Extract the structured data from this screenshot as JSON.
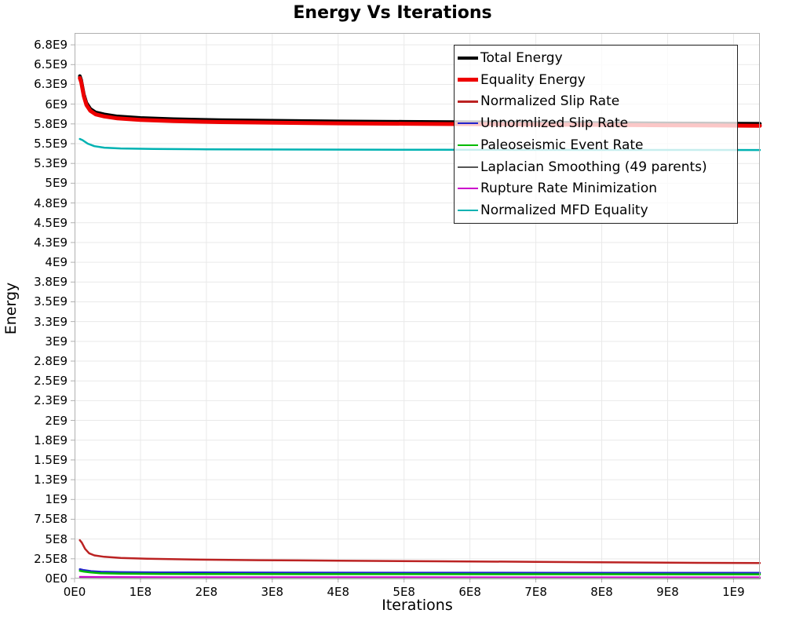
{
  "chart_data": {
    "type": "line",
    "title": "Energy Vs Iterations",
    "xlabel": "Iterations",
    "ylabel": "Energy",
    "xlim": [
      0,
      1040000000.0
    ],
    "ylim": [
      0,
      6900000000.0
    ],
    "grid": true,
    "legend_position": "upper-right-inside",
    "legend_border_color": "#222222",
    "legend_background": "rgba(255,255,255,0.78)",
    "x_ticks": [
      {
        "value": 0,
        "label": "0E0"
      },
      {
        "value": 100000000.0,
        "label": "1E8"
      },
      {
        "value": 200000000.0,
        "label": "2E8"
      },
      {
        "value": 300000000.0,
        "label": "3E8"
      },
      {
        "value": 400000000.0,
        "label": "4E8"
      },
      {
        "value": 500000000.0,
        "label": "5E8"
      },
      {
        "value": 600000000.0,
        "label": "6E8"
      },
      {
        "value": 700000000.0,
        "label": "7E8"
      },
      {
        "value": 800000000.0,
        "label": "8E8"
      },
      {
        "value": 900000000.0,
        "label": "9E8"
      },
      {
        "value": 1000000000.0,
        "label": "1E9"
      }
    ],
    "y_ticks": [
      {
        "value": 6750000000.0,
        "label": "6.8E9"
      },
      {
        "value": 6500000000.0,
        "label": "6.5E9"
      },
      {
        "value": 6250000000.0,
        "label": "6.3E9"
      },
      {
        "value": 6000000000.0,
        "label": "6E9"
      },
      {
        "value": 5750000000.0,
        "label": "5.8E9"
      },
      {
        "value": 5500000000.0,
        "label": "5.5E9"
      },
      {
        "value": 5250000000.0,
        "label": "5.3E9"
      },
      {
        "value": 5000000000.0,
        "label": "5E9"
      },
      {
        "value": 4750000000.0,
        "label": "4.8E9"
      },
      {
        "value": 4500000000.0,
        "label": "4.5E9"
      },
      {
        "value": 4250000000.0,
        "label": "4.3E9"
      },
      {
        "value": 4000000000.0,
        "label": "4E9"
      },
      {
        "value": 3750000000.0,
        "label": "3.8E9"
      },
      {
        "value": 3500000000.0,
        "label": "3.5E9"
      },
      {
        "value": 3250000000.0,
        "label": "3.3E9"
      },
      {
        "value": 3000000000.0,
        "label": "3E9"
      },
      {
        "value": 2750000000.0,
        "label": "2.8E9"
      },
      {
        "value": 2500000000.0,
        "label": "2.5E9"
      },
      {
        "value": 2250000000.0,
        "label": "2.3E9"
      },
      {
        "value": 2000000000.0,
        "label": "2E9"
      },
      {
        "value": 1750000000.0,
        "label": "1.8E9"
      },
      {
        "value": 1500000000.0,
        "label": "1.5E9"
      },
      {
        "value": 1250000000.0,
        "label": "1.3E9"
      },
      {
        "value": 1000000000.0,
        "label": "1E9"
      },
      {
        "value": 750000000.0,
        "label": "7.5E8"
      },
      {
        "value": 500000000.0,
        "label": "5E8"
      },
      {
        "value": 250000000.0,
        "label": "2.5E8"
      },
      {
        "value": 0,
        "label": "0E0"
      }
    ],
    "series": [
      {
        "name": "Total Energy",
        "color": "#000000",
        "width": 4.5,
        "points": [
          [
            8000000.0,
            6355000000.0
          ],
          [
            10000000.0,
            6305000000.0
          ],
          [
            14000000.0,
            6125000000.0
          ],
          [
            18000000.0,
            6015000000.0
          ],
          [
            24000000.0,
            5940000000.0
          ],
          [
            32000000.0,
            5895000000.0
          ],
          [
            45000000.0,
            5870000000.0
          ],
          [
            65000000.0,
            5845000000.0
          ],
          [
            100000000.0,
            5825000000.0
          ],
          [
            150000000.0,
            5810000000.0
          ],
          [
            220000000.0,
            5798000000.0
          ],
          [
            300000000.0,
            5790000000.0
          ],
          [
            400000000.0,
            5782000000.0
          ],
          [
            500000000.0,
            5777000000.0
          ],
          [
            600000000.0,
            5772000000.0
          ],
          [
            700000000.0,
            5767000000.0
          ],
          [
            800000000.0,
            5762000000.0
          ],
          [
            900000000.0,
            5757000000.0
          ],
          [
            1000000000.0,
            5753000000.0
          ],
          [
            1040000000.0,
            5752000000.0
          ]
        ]
      },
      {
        "name": "Equality Energy",
        "color": "#ee0000",
        "width": 5,
        "points": [
          [
            8000000.0,
            6330000000.0
          ],
          [
            10000000.0,
            6280000000.0
          ],
          [
            14000000.0,
            6100000000.0
          ],
          [
            18000000.0,
            5990000000.0
          ],
          [
            24000000.0,
            5915000000.0
          ],
          [
            32000000.0,
            5870000000.0
          ],
          [
            45000000.0,
            5845000000.0
          ],
          [
            65000000.0,
            5820000000.0
          ],
          [
            100000000.0,
            5800000000.0
          ],
          [
            150000000.0,
            5785000000.0
          ],
          [
            220000000.0,
            5773000000.0
          ],
          [
            300000000.0,
            5765000000.0
          ],
          [
            400000000.0,
            5757000000.0
          ],
          [
            500000000.0,
            5752000000.0
          ],
          [
            600000000.0,
            5747000000.0
          ],
          [
            700000000.0,
            5742000000.0
          ],
          [
            800000000.0,
            5737000000.0
          ],
          [
            900000000.0,
            5732000000.0
          ],
          [
            1000000000.0,
            5728000000.0
          ],
          [
            1040000000.0,
            5727000000.0
          ]
        ]
      },
      {
        "name": "Normalized Slip Rate",
        "color": "#bb2222",
        "width": 2.5,
        "points": [
          [
            8000000.0,
            485000000.0
          ],
          [
            11000000.0,
            455000000.0
          ],
          [
            16000000.0,
            375000000.0
          ],
          [
            22000000.0,
            320000000.0
          ],
          [
            30000000.0,
            293000000.0
          ],
          [
            45000000.0,
            275000000.0
          ],
          [
            70000000.0,
            260000000.0
          ],
          [
            110000000.0,
            250000000.0
          ],
          [
            180000000.0,
            240000000.0
          ],
          [
            280000000.0,
            232000000.0
          ],
          [
            400000000.0,
            226000000.0
          ],
          [
            550000000.0,
            218000000.0
          ],
          [
            700000000.0,
            211000000.0
          ],
          [
            850000000.0,
            204000000.0
          ],
          [
            950000000.0,
            199000000.0
          ],
          [
            1040000000.0,
            197000000.0
          ]
        ]
      },
      {
        "name": "Unnormlized Slip Rate",
        "color": "#2222cc",
        "width": 2.5,
        "points": [
          [
            8000000.0,
            118000000.0
          ],
          [
            14000000.0,
            106000000.0
          ],
          [
            25000000.0,
            93000000.0
          ],
          [
            40000000.0,
            85000000.0
          ],
          [
            70000000.0,
            80000000.0
          ],
          [
            130000000.0,
            77000000.0
          ],
          [
            250000000.0,
            75000000.0
          ],
          [
            500000000.0,
            73500000.0
          ],
          [
            750000000.0,
            72500000.0
          ],
          [
            1040000000.0,
            72000000.0
          ]
        ]
      },
      {
        "name": "Paleoseismic Event Rate",
        "color": "#00bb00",
        "width": 2.5,
        "points": [
          [
            8000000.0,
            98000000.0
          ],
          [
            14000000.0,
            88000000.0
          ],
          [
            25000000.0,
            76000000.0
          ],
          [
            40000000.0,
            67000000.0
          ],
          [
            70000000.0,
            62000000.0
          ],
          [
            130000000.0,
            59000000.0
          ],
          [
            250000000.0,
            57000000.0
          ],
          [
            500000000.0,
            55500000.0
          ],
          [
            750000000.0,
            54500000.0
          ],
          [
            1040000000.0,
            54000000.0
          ]
        ]
      },
      {
        "name": "Laplacian Smoothing (49 parents)",
        "color": "#555555",
        "width": 2,
        "points": [
          [
            8000000.0,
            7000000.0
          ],
          [
            100000000.0,
            5000000.0
          ],
          [
            500000000.0,
            4500000.0
          ],
          [
            1040000000.0,
            4000000.0
          ]
        ]
      },
      {
        "name": "Rupture Rate Minimization",
        "color": "#cc00cc",
        "width": 2,
        "points": [
          [
            8000000.0,
            23000000.0
          ],
          [
            40000000.0,
            20000000.0
          ],
          [
            150000000.0,
            18000000.0
          ],
          [
            500000000.0,
            17000000.0
          ],
          [
            1040000000.0,
            16000000.0
          ]
        ]
      },
      {
        "name": "Normalized MFD Equality",
        "color": "#00b2b2",
        "width": 2.5,
        "points": [
          [
            8000000.0,
            5560000000.0
          ],
          [
            12000000.0,
            5545000000.0
          ],
          [
            20000000.0,
            5500000000.0
          ],
          [
            30000000.0,
            5468000000.0
          ],
          [
            45000000.0,
            5450000000.0
          ],
          [
            70000000.0,
            5440000000.0
          ],
          [
            120000000.0,
            5433000000.0
          ],
          [
            200000000.0,
            5429000000.0
          ],
          [
            350000000.0,
            5426000000.0
          ],
          [
            550000000.0,
            5423000000.0
          ],
          [
            800000000.0,
            5421000000.0
          ],
          [
            1040000000.0,
            5420000000.0
          ]
        ]
      }
    ]
  }
}
